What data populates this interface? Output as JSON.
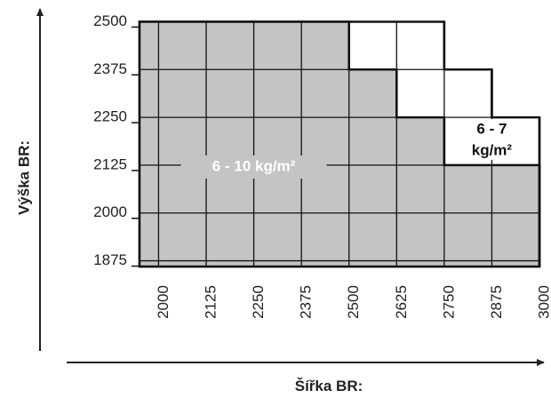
{
  "chart_data": {
    "type": "zone",
    "ylabel": "Výška BR:",
    "xlabel": "Šířka BR:",
    "xlim": [
      1950,
      3000
    ],
    "ylim": [
      1860,
      2515
    ],
    "xticks": [
      2000,
      2125,
      2250,
      2375,
      2500,
      2625,
      2750,
      2875,
      3000
    ],
    "yticks": [
      1875,
      2000,
      2125,
      2250,
      2375,
      2500
    ],
    "grid": true,
    "zones": [
      {
        "label": [
          "6 - 7",
          "kg/m²"
        ],
        "color": "#ffffff",
        "steps": [
          {
            "x": 2750,
            "y": 2500
          },
          {
            "x": 2875,
            "y": 2375
          },
          {
            "x": 3000,
            "y": 2250
          }
        ]
      },
      {
        "label": [
          "6 - 10 kg/m²"
        ],
        "color": "#c4c4c4",
        "steps": [
          {
            "x": 2500,
            "y": 2500
          },
          {
            "x": 2625,
            "y": 2375
          },
          {
            "x": 2750,
            "y": 2250
          },
          {
            "x": 3000,
            "y": 2125
          }
        ]
      }
    ]
  }
}
